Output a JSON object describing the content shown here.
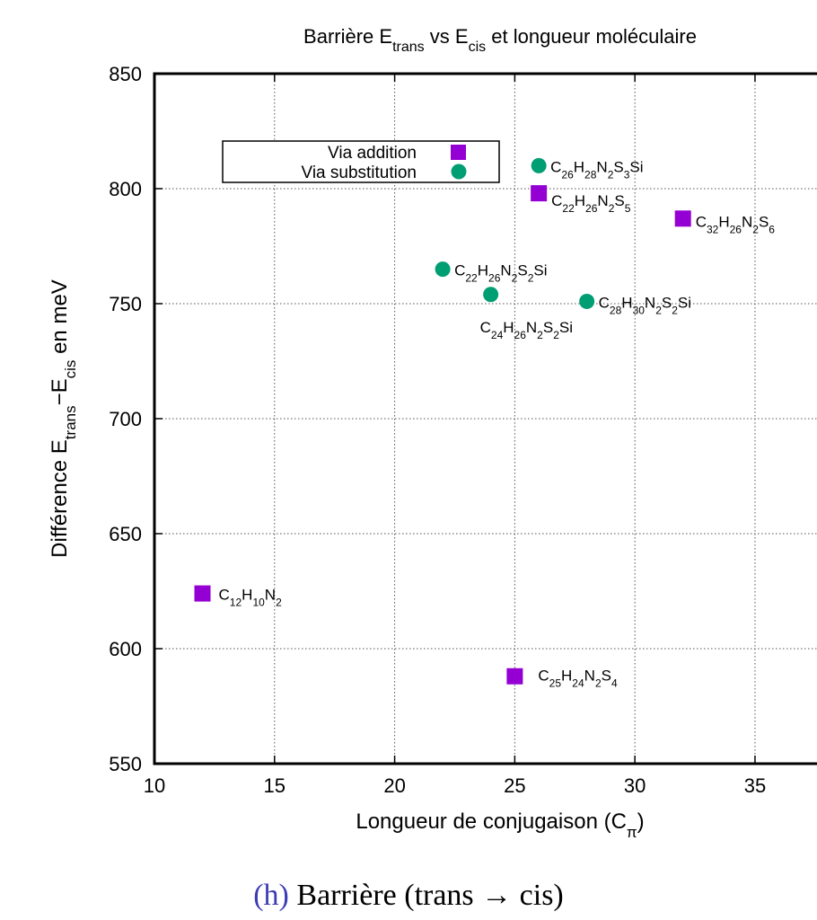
{
  "chart_data": {
    "type": "scatter",
    "title": {
      "pre": "Barrière E",
      "sub1": "trans",
      "mid": " vs E",
      "sub2": "cis",
      "post": " et longueur moléculaire"
    },
    "xlabel": {
      "pre": "Longueur de conjugaison  (C",
      "sub": "π",
      "post": ")"
    },
    "ylabel": {
      "p1": "Différence E",
      "s1": "trans",
      "p2": "−E",
      "s2": "cis",
      "p3": " en meV"
    },
    "xlim": [
      10,
      39
    ],
    "ylim": [
      550,
      850
    ],
    "xticks": [
      10,
      15,
      20,
      25,
      30,
      35
    ],
    "yticks": [
      550,
      600,
      650,
      700,
      750,
      800,
      850
    ],
    "grid": true,
    "legend_position": "top-left",
    "series": [
      {
        "name": "Via addition",
        "marker": "square",
        "color": "#9400d3",
        "points": [
          {
            "x": 12,
            "y": 624,
            "label": [
              [
                "C",
                ""
              ],
              [
                "",
                "12"
              ],
              [
                "H",
                ""
              ],
              [
                "",
                "10"
              ],
              [
                "N",
                ""
              ],
              [
                "",
                "2"
              ]
            ]
          },
          {
            "x": 25,
            "y": 588,
            "label": [
              [
                "C",
                ""
              ],
              [
                "",
                "25"
              ],
              [
                "H",
                ""
              ],
              [
                "",
                "24"
              ],
              [
                "N",
                ""
              ],
              [
                "",
                "2"
              ],
              [
                "S",
                ""
              ],
              [
                "",
                "4"
              ]
            ]
          },
          {
            "x": 26,
            "y": 798,
            "label": [
              [
                "C",
                ""
              ],
              [
                "",
                "22"
              ],
              [
                "H",
                ""
              ],
              [
                "",
                "26"
              ],
              [
                "N",
                ""
              ],
              [
                "",
                "2"
              ],
              [
                "S",
                ""
              ],
              [
                "",
                "5"
              ]
            ]
          },
          {
            "x": 32,
            "y": 787,
            "label": [
              [
                "C",
                ""
              ],
              [
                "",
                "32"
              ],
              [
                "H",
                ""
              ],
              [
                "",
                "26"
              ],
              [
                "N",
                ""
              ],
              [
                "",
                "2"
              ],
              [
                "S",
                ""
              ],
              [
                "",
                "6"
              ]
            ]
          }
        ]
      },
      {
        "name": "Via substitution",
        "marker": "circle",
        "color": "#009e73",
        "points": [
          {
            "x": 22,
            "y": 765,
            "label": [
              [
                "C",
                ""
              ],
              [
                "",
                "22"
              ],
              [
                "H",
                ""
              ],
              [
                "",
                "26"
              ],
              [
                "N",
                ""
              ],
              [
                "",
                "2"
              ],
              [
                "S",
                ""
              ],
              [
                "",
                "2"
              ],
              [
                "Si",
                ""
              ]
            ]
          },
          {
            "x": 24,
            "y": 754,
            "label": [
              [
                "C",
                ""
              ],
              [
                "",
                "24"
              ],
              [
                "H",
                ""
              ],
              [
                "",
                "26"
              ],
              [
                "N",
                ""
              ],
              [
                "",
                "2"
              ],
              [
                "S",
                ""
              ],
              [
                "",
                "2"
              ],
              [
                "Si",
                ""
              ]
            ]
          },
          {
            "x": 26,
            "y": 810,
            "label": [
              [
                "C",
                ""
              ],
              [
                "",
                "26"
              ],
              [
                "H",
                ""
              ],
              [
                "",
                "28"
              ],
              [
                "N",
                ""
              ],
              [
                "",
                "2"
              ],
              [
                "S",
                ""
              ],
              [
                "",
                "3"
              ],
              [
                "Si",
                ""
              ]
            ]
          },
          {
            "x": 28,
            "y": 751,
            "label": [
              [
                "C",
                ""
              ],
              [
                "",
                "28"
              ],
              [
                "H",
                ""
              ],
              [
                "",
                "30"
              ],
              [
                "N",
                ""
              ],
              [
                "",
                "2"
              ],
              [
                "S",
                ""
              ],
              [
                "",
                "2"
              ],
              [
                "Si",
                ""
              ]
            ]
          }
        ]
      }
    ]
  },
  "caption": {
    "label": "(h)",
    "text": " Barrière (trans → cis)"
  }
}
